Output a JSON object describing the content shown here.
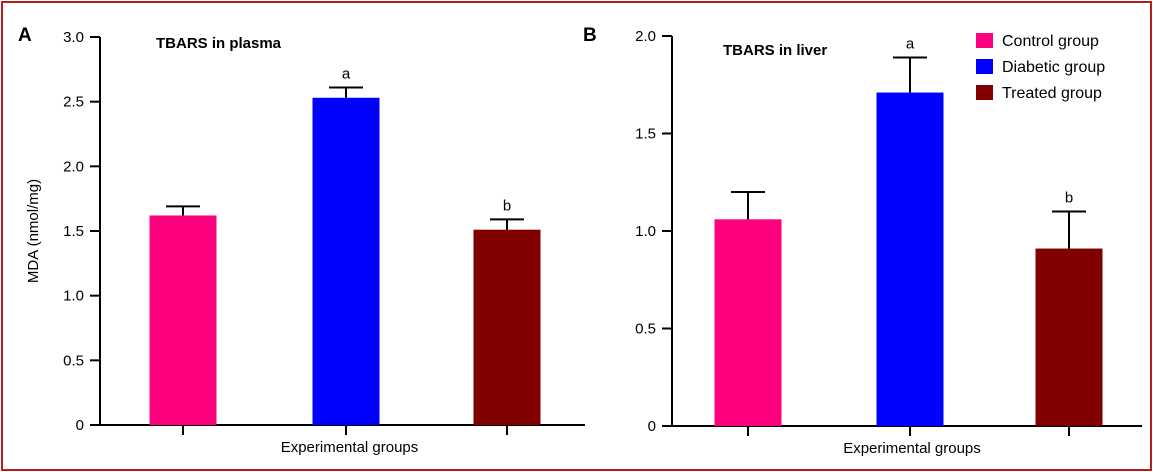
{
  "chart_data": [
    {
      "type": "bar",
      "panel_label": "A",
      "title": "TBARS in plasma",
      "xlabel": "Experimental groups",
      "ylabel": "MDA (nmol/mg)",
      "categories": [
        "Control group",
        "Diabetic group",
        "Treated group"
      ],
      "values": [
        1.62,
        2.53,
        1.51
      ],
      "errors": [
        0.07,
        0.08,
        0.08
      ],
      "significance": [
        "",
        "a",
        "b"
      ],
      "ylim": [
        0,
        3.0
      ],
      "yticks": [
        0,
        0.5,
        1.0,
        1.5,
        2.0,
        2.5,
        3.0
      ],
      "ytick_labels": [
        "0",
        "0.5",
        "1.0",
        "1.5",
        "2.0",
        "2.5",
        "3.0"
      ],
      "colors": [
        "#ff007f",
        "#0000ff",
        "#800000"
      ],
      "grid": false
    },
    {
      "type": "bar",
      "panel_label": "B",
      "title": "TBARS in liver",
      "xlabel": "Experimental groups",
      "ylabel": "",
      "categories": [
        "Control group",
        "Diabetic group",
        "Treated group"
      ],
      "values": [
        1.06,
        1.71,
        0.91
      ],
      "errors": [
        0.14,
        0.18,
        0.19
      ],
      "significance": [
        "",
        "a",
        "b"
      ],
      "ylim": [
        0,
        2.0
      ],
      "yticks": [
        0,
        0.5,
        1.0,
        1.5,
        2.0
      ],
      "ytick_labels": [
        "0",
        "0.5",
        "1.0",
        "1.5",
        "2.0"
      ],
      "colors": [
        "#ff007f",
        "#0000ff",
        "#800000"
      ],
      "grid": false
    }
  ],
  "legend": {
    "placement": "top-right",
    "entries": [
      {
        "label": "Control group",
        "color": "#ff007f"
      },
      {
        "label": "Diabetic group",
        "color": "#0000ff"
      },
      {
        "label": "Treated group",
        "color": "#800000"
      }
    ]
  }
}
